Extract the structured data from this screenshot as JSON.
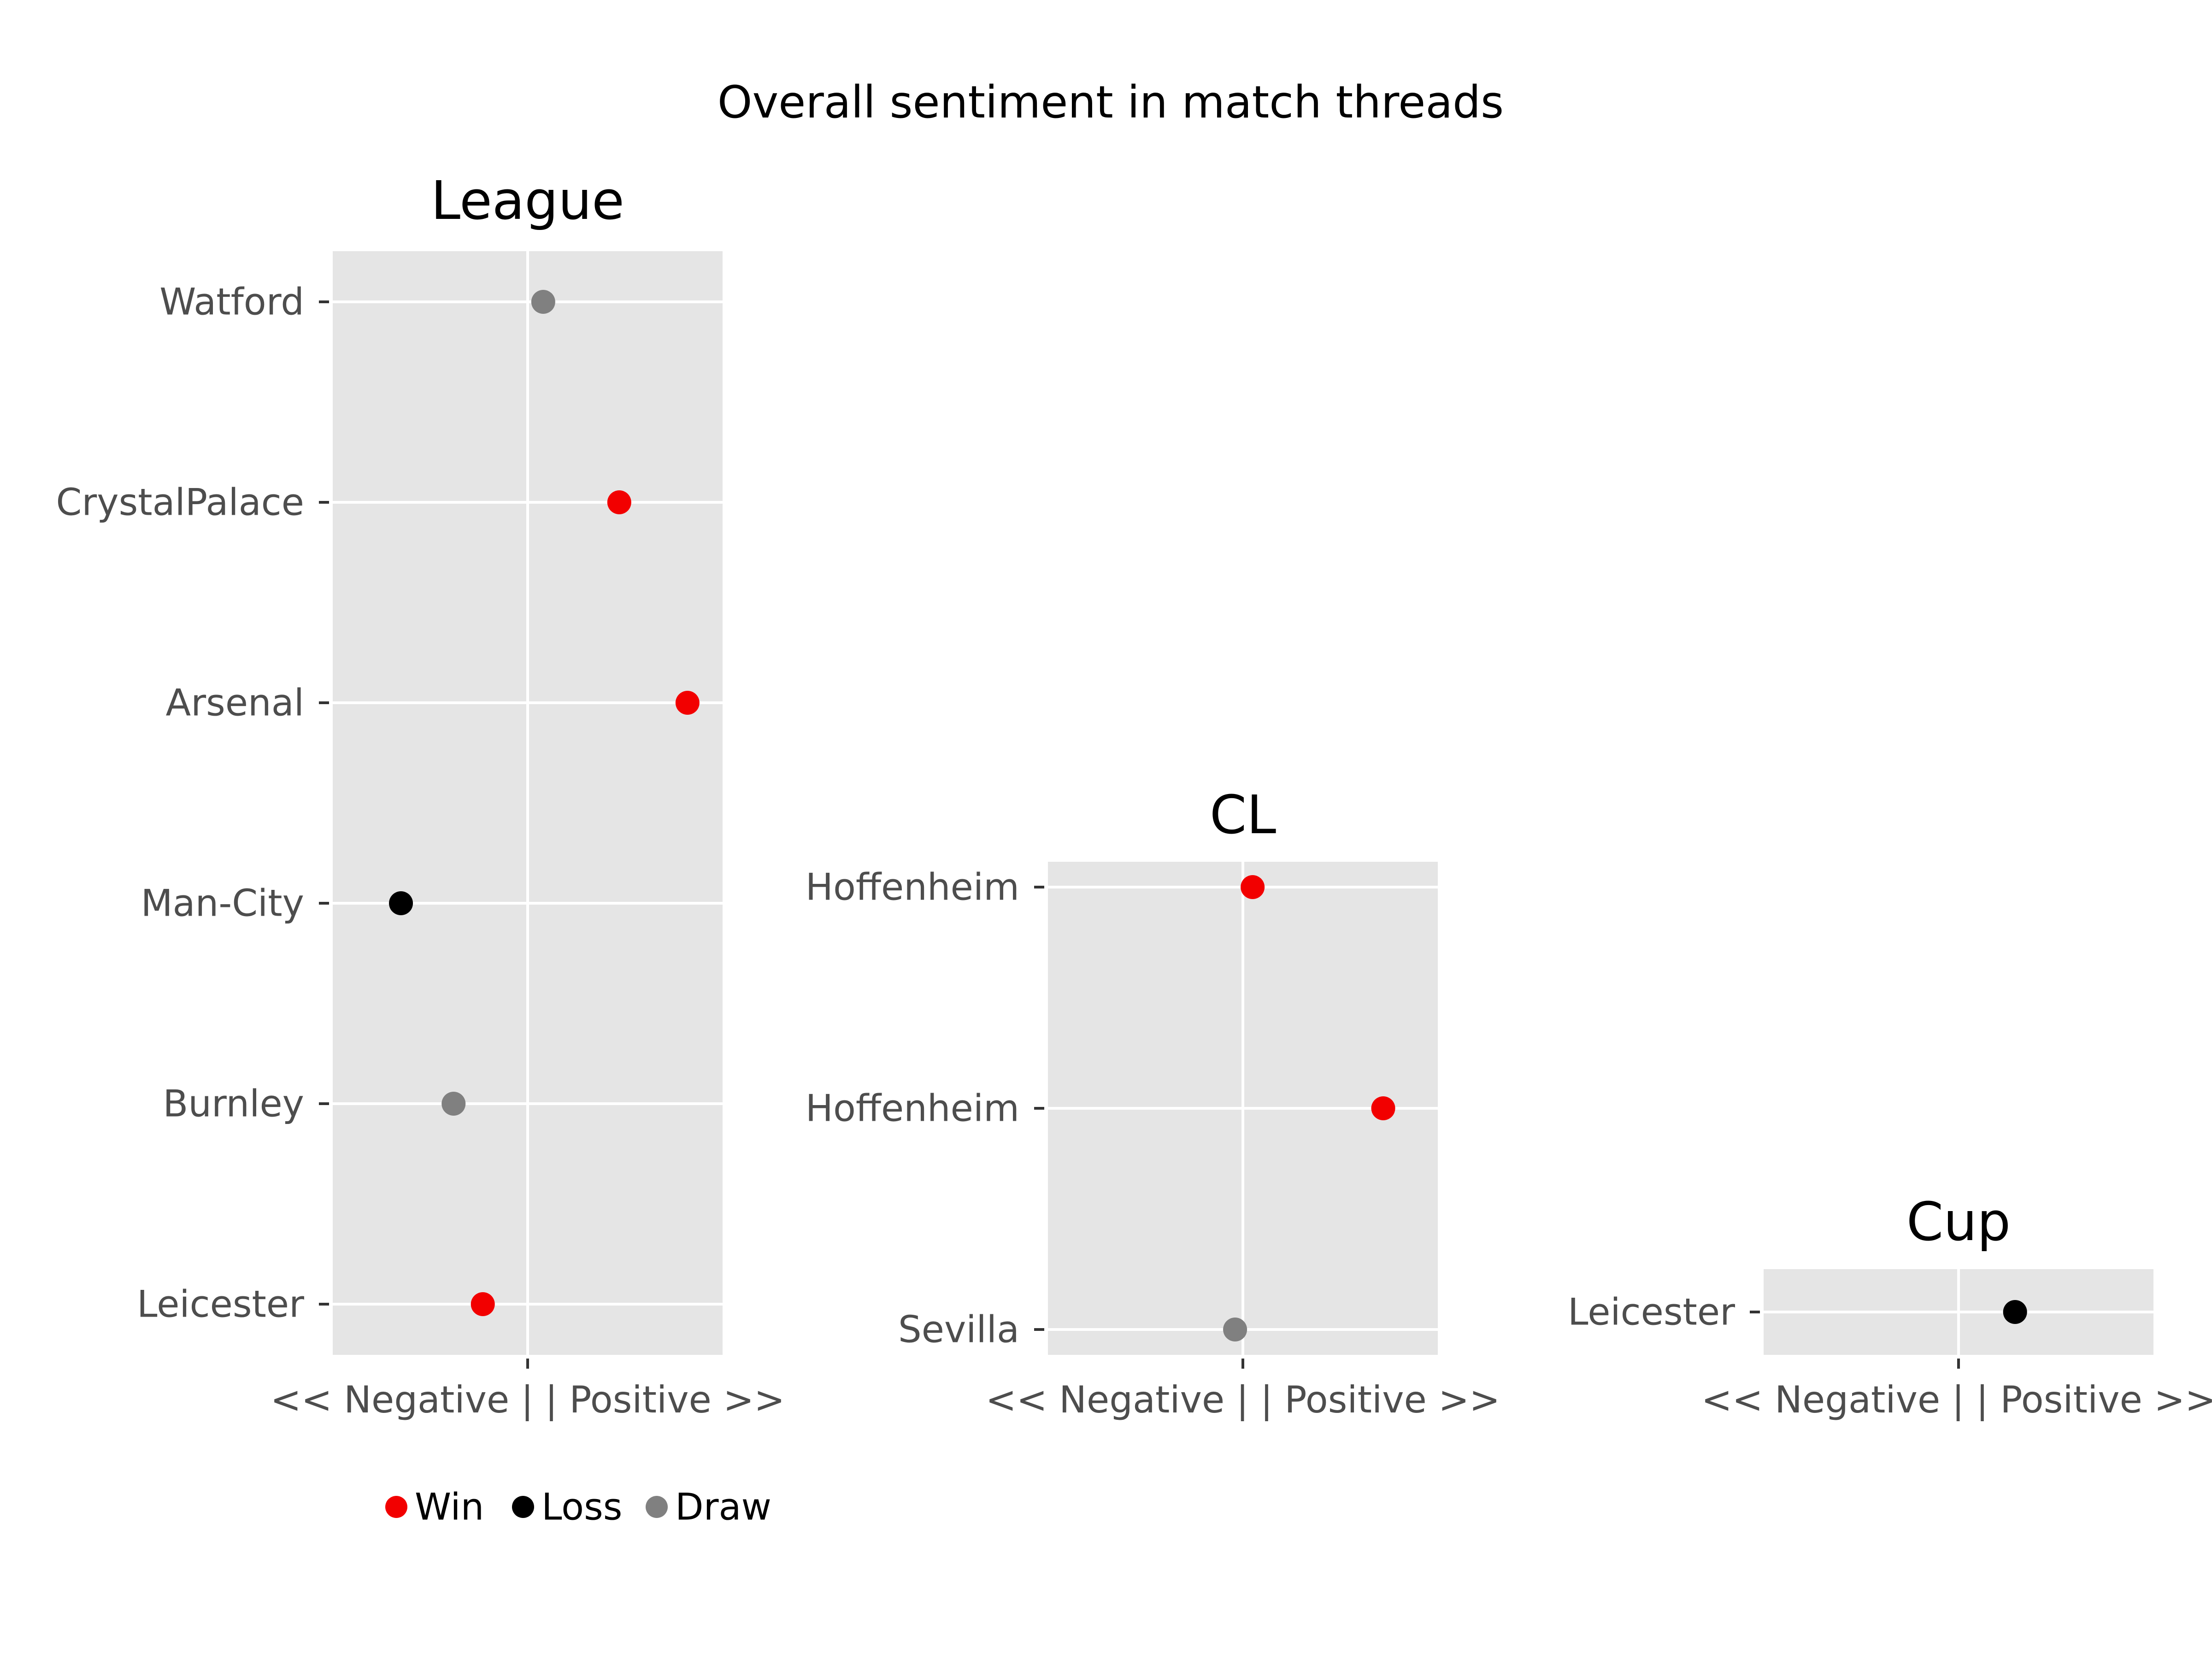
{
  "chart_data": {
    "type": "scatter",
    "title": "Overall sentiment in match threads",
    "xlabel": "<< Negative | | Positive >>",
    "colors": {
      "Win": "#f20000",
      "Loss": "#000000",
      "Draw": "#808080",
      "panel_background": "#e5e5e5",
      "grid": "#ffffff"
    },
    "legend": {
      "placement": "bottom",
      "entries": [
        "Win",
        "Loss",
        "Draw"
      ]
    },
    "panels": [
      {
        "name": "League",
        "xlim": [
          -1,
          1
        ],
        "categories": [
          "Watford",
          "CrystalPalace",
          "Arsenal",
          "Man-City",
          "Burnley",
          "Leicester"
        ],
        "points": [
          {
            "team": "Watford",
            "value": 0.08,
            "result": "Draw"
          },
          {
            "team": "CrystalPalace",
            "value": 0.47,
            "result": "Win"
          },
          {
            "team": "Arsenal",
            "value": 0.82,
            "result": "Win"
          },
          {
            "team": "Man-City",
            "value": -0.65,
            "result": "Loss"
          },
          {
            "team": "Burnley",
            "value": -0.38,
            "result": "Draw"
          },
          {
            "team": "Leicester",
            "value": -0.23,
            "result": "Win"
          }
        ]
      },
      {
        "name": "CL",
        "xlim": [
          -1,
          1
        ],
        "categories": [
          "Hoffenheim",
          "Hoffenheim",
          "Sevilla"
        ],
        "points": [
          {
            "team": "Hoffenheim",
            "value": 0.05,
            "result": "Win"
          },
          {
            "team": "Hoffenheim",
            "value": 0.72,
            "result": "Win"
          },
          {
            "team": "Sevilla",
            "value": -0.04,
            "result": "Draw"
          }
        ]
      },
      {
        "name": "Cup",
        "xlim": [
          -1,
          1
        ],
        "categories": [
          "Leicester"
        ],
        "points": [
          {
            "team": "Leicester",
            "value": 0.29,
            "result": "Loss"
          }
        ]
      }
    ]
  }
}
